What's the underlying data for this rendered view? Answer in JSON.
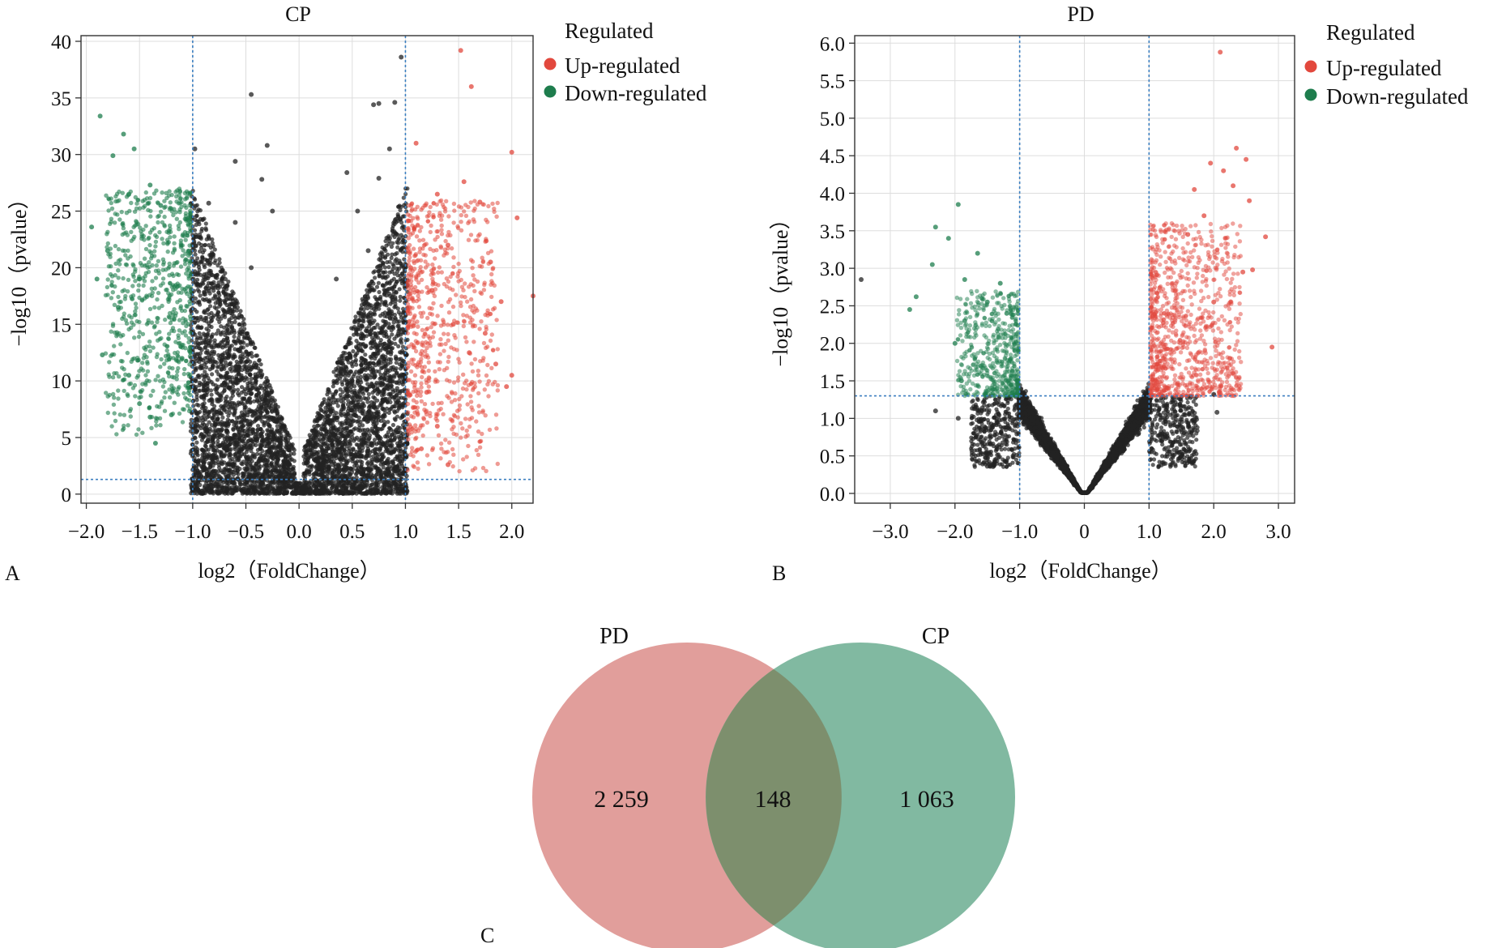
{
  "colors": {
    "up": "#e2483d",
    "down": "#1e7d4d",
    "ns": "#222222",
    "threshold": "#3c7fc0",
    "grid": "#dddddd",
    "venn_pd": "#d9837f",
    "venn_cp": "#5ea586",
    "venn_overlap": "#7d8e6c"
  },
  "chart_data": [
    {
      "type": "scatter",
      "panel_label": "A",
      "title": "CP",
      "xlabel": "log2（FoldChange）",
      "ylabel": "−log10（pvalue）",
      "xlim": [
        -2.05,
        2.2
      ],
      "ylim": [
        -0.8,
        40.5
      ],
      "xticks": [
        -2.0,
        -1.5,
        -1.0,
        -0.5,
        0.0,
        0.5,
        1.0,
        1.5,
        2.0
      ],
      "xtick_labels": [
        "−2.0",
        "−1.5",
        "−1.0",
        "−0.5",
        "0.0",
        "0.5",
        "1.0",
        "1.5",
        "2.0"
      ],
      "yticks": [
        0,
        5,
        10,
        15,
        20,
        25,
        30,
        35,
        40
      ],
      "ytick_labels": [
        "0",
        "5",
        "10",
        "15",
        "20",
        "25",
        "30",
        "35",
        "40"
      ],
      "grid": true,
      "thresholds": {
        "x": [
          -1.0,
          1.0
        ],
        "y": 1.3
      },
      "legend": {
        "title": "Regulated",
        "placement": "right",
        "entries": [
          {
            "label": "Up-regulated",
            "color": "#e2483d"
          },
          {
            "label": "Down-regulated",
            "color": "#1e7d4d"
          }
        ]
      },
      "series": [
        {
          "name": "Up-regulated",
          "points": [
            [
              1.52,
              39.2
            ],
            [
              1.62,
              36.0
            ],
            [
              2.0,
              30.2
            ],
            [
              1.1,
              31.0
            ],
            [
              1.55,
              27.6
            ],
            [
              1.3,
              26.5
            ],
            [
              1.7,
              25.8
            ],
            [
              2.05,
              24.4
            ],
            [
              1.4,
              22.0
            ],
            [
              1.8,
              20.5
            ],
            [
              2.2,
              17.5
            ],
            [
              1.9,
              17.0
            ],
            [
              1.45,
              15.0
            ],
            [
              1.75,
              14.2
            ],
            [
              1.6,
              12.5
            ],
            [
              2.0,
              10.5
            ],
            [
              1.95,
              9.5
            ],
            [
              1.85,
              11.5
            ],
            [
              1.2,
              9.0
            ],
            [
              1.3,
              6.0
            ],
            [
              1.15,
              4.0
            ],
            [
              1.4,
              2.6
            ],
            [
              1.25,
              18.0
            ],
            [
              1.05,
              20.0
            ]
          ]
        },
        {
          "name": "Down-regulated",
          "points": [
            [
              -1.87,
              33.4
            ],
            [
              -1.65,
              31.8
            ],
            [
              -1.55,
              30.5
            ],
            [
              -1.75,
              29.9
            ],
            [
              -1.4,
              27.3
            ],
            [
              -1.6,
              26.5
            ],
            [
              -1.95,
              23.6
            ],
            [
              -1.8,
              21.5
            ],
            [
              -1.3,
              25.5
            ],
            [
              -1.9,
              19.0
            ],
            [
              -1.7,
              16.5
            ],
            [
              -1.85,
              12.3
            ],
            [
              -1.6,
              10.5
            ],
            [
              -1.5,
              8.0
            ],
            [
              -1.4,
              6.8
            ],
            [
              -1.35,
              4.5
            ],
            [
              -1.2,
              7.0
            ],
            [
              -1.1,
              12.0
            ],
            [
              -1.5,
              19.0
            ]
          ]
        },
        {
          "name": "Not significant",
          "points": [
            [
              0.96,
              38.6
            ],
            [
              -0.98,
              30.5
            ],
            [
              -0.45,
              35.3
            ],
            [
              0.9,
              34.6
            ],
            [
              0.75,
              34.5
            ],
            [
              0.7,
              34.4
            ],
            [
              -0.6,
              29.4
            ],
            [
              -0.3,
              30.8
            ],
            [
              0.45,
              28.4
            ],
            [
              0.75,
              27.9
            ],
            [
              0.85,
              30.5
            ],
            [
              -0.35,
              27.8
            ],
            [
              0.55,
              25.0
            ],
            [
              0.95,
              24.3
            ],
            [
              -0.25,
              25.0
            ],
            [
              -0.6,
              24.0
            ],
            [
              -0.85,
              25.7
            ],
            [
              0.65,
              21.5
            ],
            [
              -0.45,
              20.0
            ],
            [
              0.35,
              19.0
            ]
          ]
        }
      ]
    },
    {
      "type": "scatter",
      "panel_label": "B",
      "title": "PD",
      "xlabel": "log2（FoldChange）",
      "ylabel": "−log10（pvalue）",
      "xlim": [
        -3.55,
        3.25
      ],
      "ylim": [
        -0.13,
        6.1
      ],
      "xticks": [
        -3.0,
        -2.0,
        -1.0,
        0,
        1.0,
        2.0,
        3.0
      ],
      "xtick_labels": [
        "−3.0",
        "−2.0",
        "−1.0",
        "0",
        "1.0",
        "2.0",
        "3.0"
      ],
      "yticks": [
        0.0,
        0.5,
        1.0,
        1.5,
        2.0,
        2.5,
        3.0,
        3.5,
        4.0,
        4.5,
        5.0,
        5.5,
        6.0
      ],
      "ytick_labels": [
        "0.0",
        "0.5",
        "1.0",
        "1.5",
        "2.0",
        "2.5",
        "3.0",
        "3.5",
        "4.0",
        "4.5",
        "5.0",
        "5.5",
        "6.0"
      ],
      "grid": true,
      "thresholds": {
        "x": [
          -1.0,
          1.0
        ],
        "y": 1.3
      },
      "legend": {
        "title": "Regulated",
        "placement": "right",
        "entries": [
          {
            "label": "Up-regulated",
            "color": "#e2483d"
          },
          {
            "label": "Down-regulated",
            "color": "#1e7d4d"
          }
        ]
      },
      "series": [
        {
          "name": "Up-regulated",
          "points": [
            [
              2.1,
              5.88
            ],
            [
              2.35,
              4.6
            ],
            [
              2.5,
              4.45
            ],
            [
              2.15,
              4.3
            ],
            [
              1.95,
              4.4
            ],
            [
              2.3,
              4.1
            ],
            [
              2.55,
              3.9
            ],
            [
              1.7,
              4.05
            ],
            [
              1.85,
              3.7
            ],
            [
              2.8,
              3.42
            ],
            [
              1.6,
              3.45
            ],
            [
              2.6,
              2.98
            ],
            [
              2.45,
              2.95
            ],
            [
              2.9,
              1.95
            ],
            [
              2.25,
              1.8
            ],
            [
              2.0,
              2.55
            ],
            [
              1.4,
              2.7
            ],
            [
              1.3,
              1.4
            ]
          ]
        },
        {
          "name": "Down-regulated",
          "points": [
            [
              -1.95,
              3.85
            ],
            [
              -2.3,
              3.55
            ],
            [
              -2.1,
              3.4
            ],
            [
              -1.65,
              3.2
            ],
            [
              -2.35,
              3.05
            ],
            [
              -1.85,
              2.85
            ],
            [
              -2.6,
              2.62
            ],
            [
              -2.7,
              2.45
            ],
            [
              -2.0,
              2.0
            ],
            [
              -1.3,
              2.8
            ],
            [
              -1.5,
              2.55
            ],
            [
              -1.85,
              2.3
            ],
            [
              -1.2,
              2.4
            ],
            [
              -1.6,
              1.7
            ],
            [
              -1.9,
              1.5
            ]
          ]
        },
        {
          "name": "Not significant",
          "points": [
            [
              -3.45,
              2.85
            ],
            [
              2.0,
              1.32
            ],
            [
              2.05,
              1.08
            ],
            [
              1.7,
              0.85
            ],
            [
              -1.95,
              1.0
            ],
            [
              -2.3,
              1.1
            ],
            [
              -0.5,
              0.6
            ],
            [
              0.6,
              0.7
            ],
            [
              -0.9,
              1.2
            ],
            [
              0.9,
              1.1
            ]
          ]
        }
      ]
    },
    {
      "type": "venn",
      "panel_label": "C",
      "sets": [
        {
          "name": "PD",
          "only": "2 259",
          "color": "#d9837f"
        },
        {
          "name": "CP",
          "only": "1 063",
          "color": "#5ea586"
        }
      ],
      "intersection": "148"
    }
  ]
}
